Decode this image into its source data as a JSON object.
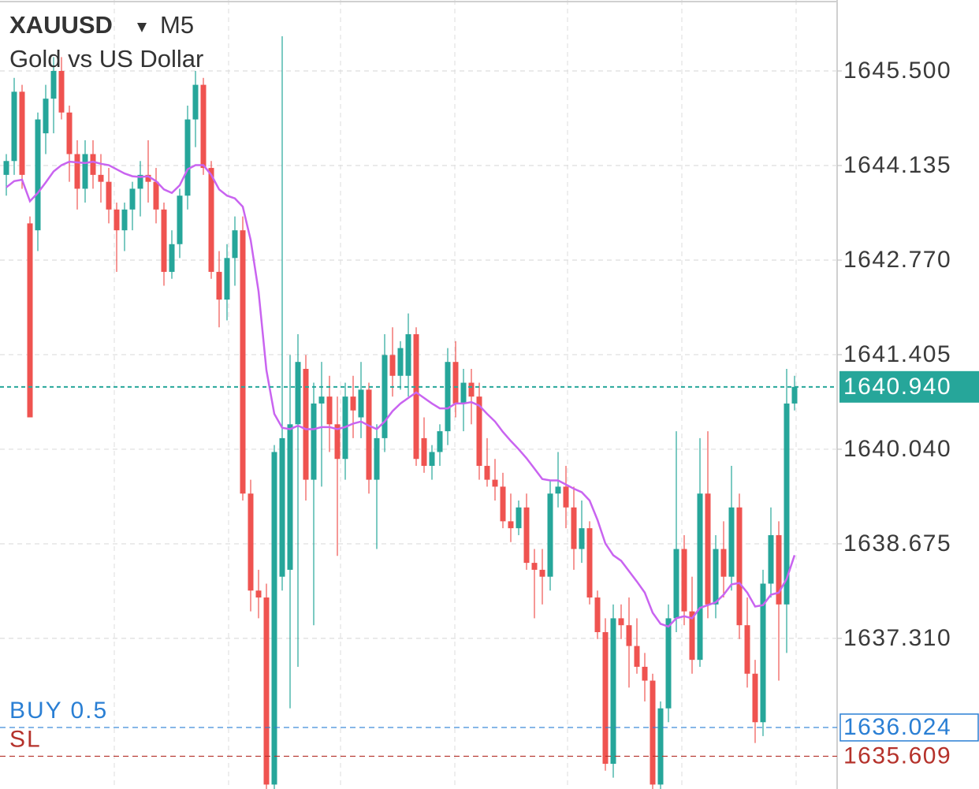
{
  "chart_data": {
    "type": "candlestick",
    "symbol": "XAUUSD",
    "timeframe": "M5",
    "description": "Gold vs US Dollar",
    "ylim": [
      1635.136,
      1646.524
    ],
    "yticks": [
      {
        "value": 1645.5,
        "label": "1645.500"
      },
      1644.135,
      {
        "value": 1642.77,
        "label": "1642.770"
      },
      1641.405,
      {
        "value": 1640.04,
        "label": "1640.040"
      },
      1638.675,
      {
        "value": 1637.31,
        "label": "1637.310"
      }
    ],
    "grid": true,
    "up_color": "#26a69a",
    "down_color": "#ef5350",
    "candles": [
      [
        1644.0,
        1644.3,
        1643.7,
        1644.2
      ],
      [
        1644.2,
        1645.4,
        1644.0,
        1645.2
      ],
      [
        1645.2,
        1645.3,
        1643.8,
        1644.0
      ],
      [
        1643.3,
        1643.4,
        1640.5,
        1640.5
      ],
      [
        1643.2,
        1644.9,
        1642.9,
        1644.8
      ],
      [
        1644.6,
        1645.3,
        1644.3,
        1645.1
      ],
      [
        1645.1,
        1645.7,
        1644.6,
        1645.5
      ],
      [
        1645.5,
        1645.7,
        1644.8,
        1644.9
      ],
      [
        1644.9,
        1645.0,
        1643.9,
        1644.3
      ],
      [
        1644.3,
        1644.5,
        1643.5,
        1643.8
      ],
      [
        1643.8,
        1644.5,
        1643.6,
        1644.3
      ],
      [
        1644.3,
        1644.5,
        1643.8,
        1644.0
      ],
      [
        1644.0,
        1644.3,
        1643.6,
        1643.9
      ],
      [
        1643.9,
        1644.1,
        1643.3,
        1643.5
      ],
      [
        1643.5,
        1643.6,
        1642.6,
        1643.2
      ],
      [
        1643.2,
        1643.6,
        1642.9,
        1643.5
      ],
      [
        1643.5,
        1643.9,
        1643.2,
        1643.8
      ],
      [
        1643.8,
        1644.2,
        1643.4,
        1644.0
      ],
      [
        1644.0,
        1644.5,
        1643.6,
        1643.9
      ],
      [
        1643.9,
        1644.1,
        1643.3,
        1643.5
      ],
      [
        1643.5,
        1643.6,
        1642.4,
        1642.6
      ],
      [
        1642.6,
        1643.2,
        1642.5,
        1643.0
      ],
      [
        1643.0,
        1643.8,
        1642.8,
        1643.7
      ],
      [
        1643.7,
        1645.0,
        1643.5,
        1644.8
      ],
      [
        1644.8,
        1645.5,
        1644.4,
        1645.3
      ],
      [
        1645.3,
        1645.4,
        1644.0,
        1644.1
      ],
      [
        1644.1,
        1644.2,
        1642.5,
        1642.6
      ],
      [
        1642.6,
        1642.9,
        1641.8,
        1642.2
      ],
      [
        1642.2,
        1643.0,
        1641.9,
        1642.8
      ],
      [
        1642.8,
        1643.4,
        1642.4,
        1643.2
      ],
      [
        1643.2,
        1643.4,
        1639.3,
        1639.4
      ],
      [
        1639.4,
        1639.6,
        1637.7,
        1638.0
      ],
      [
        1638.0,
        1638.3,
        1637.6,
        1637.9
      ],
      [
        1637.9,
        1638.1,
        1635.1,
        1635.2
      ],
      [
        1635.2,
        1640.1,
        1635.1,
        1640.0
      ],
      [
        1638.2,
        1646.0,
        1638.0,
        1640.2
      ],
      [
        1638.3,
        1641.4,
        1636.3,
        1640.4
      ],
      [
        1640.4,
        1641.7,
        1636.9,
        1641.3
      ],
      [
        1641.2,
        1641.4,
        1639.3,
        1639.6
      ],
      [
        1639.6,
        1641.0,
        1637.5,
        1640.7
      ],
      [
        1640.7,
        1641.3,
        1639.5,
        1640.8
      ],
      [
        1640.8,
        1641.1,
        1640.0,
        1640.4
      ],
      [
        1640.4,
        1640.8,
        1638.5,
        1639.9
      ],
      [
        1639.9,
        1641.0,
        1639.6,
        1640.8
      ],
      [
        1640.8,
        1641.1,
        1640.2,
        1640.6
      ],
      [
        1640.5,
        1641.3,
        1640.2,
        1640.9
      ],
      [
        1640.9,
        1641.0,
        1639.4,
        1639.6
      ],
      [
        1639.6,
        1640.4,
        1638.6,
        1640.2
      ],
      [
        1640.2,
        1641.7,
        1640.0,
        1641.4
      ],
      [
        1641.4,
        1641.8,
        1640.8,
        1641.1
      ],
      [
        1641.1,
        1641.6,
        1640.9,
        1641.5
      ],
      [
        1641.1,
        1642.0,
        1640.8,
        1641.7
      ],
      [
        1641.7,
        1641.8,
        1639.8,
        1639.9
      ],
      [
        1640.2,
        1640.5,
        1639.7,
        1639.8
      ],
      [
        1639.8,
        1640.1,
        1639.6,
        1640.0
      ],
      [
        1640.0,
        1640.4,
        1639.8,
        1640.3
      ],
      [
        1640.3,
        1641.5,
        1640.1,
        1641.3
      ],
      [
        1641.3,
        1641.6,
        1640.5,
        1640.7
      ],
      [
        1640.7,
        1641.2,
        1640.3,
        1641.0
      ],
      [
        1641.0,
        1641.2,
        1640.4,
        1640.8
      ],
      [
        1640.8,
        1641.0,
        1639.6,
        1639.8
      ],
      [
        1639.8,
        1640.2,
        1639.5,
        1639.6
      ],
      [
        1639.6,
        1639.9,
        1639.3,
        1639.5
      ],
      [
        1639.5,
        1639.7,
        1638.9,
        1639.0
      ],
      [
        1639.0,
        1639.4,
        1638.7,
        1638.9
      ],
      [
        1638.9,
        1639.3,
        1638.8,
        1639.2
      ],
      [
        1639.2,
        1639.4,
        1638.3,
        1638.4
      ],
      [
        1638.4,
        1638.6,
        1637.6,
        1638.3
      ],
      [
        1638.3,
        1638.6,
        1637.8,
        1638.2
      ],
      [
        1638.2,
        1639.6,
        1638.0,
        1639.4
      ],
      [
        1639.4,
        1640.0,
        1639.2,
        1639.5
      ],
      [
        1639.5,
        1639.8,
        1638.9,
        1639.2
      ],
      [
        1639.2,
        1639.5,
        1638.3,
        1638.6
      ],
      [
        1638.6,
        1639.3,
        1638.4,
        1638.9
      ],
      [
        1638.9,
        1639.0,
        1637.8,
        1637.9
      ],
      [
        1637.9,
        1638.0,
        1637.3,
        1637.4
      ],
      [
        1637.4,
        1637.6,
        1635.4,
        1635.5
      ],
      [
        1635.5,
        1637.8,
        1635.3,
        1637.6
      ],
      [
        1637.6,
        1637.8,
        1637.3,
        1637.5
      ],
      [
        1637.5,
        1637.9,
        1636.6,
        1637.2
      ],
      [
        1637.2,
        1637.6,
        1636.8,
        1636.9
      ],
      [
        1636.9,
        1637.1,
        1636.4,
        1636.7
      ],
      [
        1636.7,
        1636.8,
        1635.1,
        1635.2
      ],
      [
        1635.2,
        1636.4,
        1635.1,
        1636.3
      ],
      [
        1636.3,
        1637.8,
        1636.1,
        1637.6
      ],
      [
        1637.6,
        1640.3,
        1637.4,
        1638.6
      ],
      [
        1638.6,
        1638.8,
        1637.5,
        1637.7
      ],
      [
        1637.7,
        1638.2,
        1636.8,
        1637.0
      ],
      [
        1637.0,
        1640.2,
        1636.9,
        1639.4
      ],
      [
        1639.4,
        1640.3,
        1637.6,
        1637.8
      ],
      [
        1637.8,
        1638.8,
        1637.6,
        1638.6
      ],
      [
        1638.6,
        1639.0,
        1637.9,
        1638.2
      ],
      [
        1638.2,
        1639.8,
        1638.0,
        1639.2
      ],
      [
        1639.2,
        1639.4,
        1637.3,
        1637.5
      ],
      [
        1637.5,
        1637.9,
        1636.6,
        1636.8
      ],
      [
        1636.8,
        1637.0,
        1635.8,
        1636.1
      ],
      [
        1636.1,
        1638.3,
        1635.9,
        1638.1
      ],
      [
        1638.1,
        1639.2,
        1637.9,
        1638.8
      ],
      [
        1638.8,
        1639.0,
        1636.7,
        1637.8
      ],
      [
        1637.8,
        1641.2,
        1637.1,
        1640.7
      ],
      [
        1640.7,
        1641.1,
        1640.6,
        1640.94
      ]
    ],
    "ma_color": "#c964f0",
    "ma": [
      1643.82,
      1643.91,
      1643.93,
      1643.62,
      1643.74,
      1643.89,
      1644.05,
      1644.14,
      1644.19,
      1644.18,
      1644.17,
      1644.19,
      1644.16,
      1644.14,
      1644.08,
      1644.02,
      1643.98,
      1643.97,
      1643.98,
      1643.91,
      1643.79,
      1643.74,
      1643.85,
      1644.08,
      1644.14,
      1644.14,
      1644.0,
      1643.79,
      1643.7,
      1643.66,
      1643.54,
      1643.06,
      1642.32,
      1641.18,
      1640.55,
      1640.35,
      1640.33,
      1640.38,
      1640.33,
      1640.33,
      1640.36,
      1640.36,
      1640.33,
      1640.36,
      1640.41,
      1640.44,
      1640.38,
      1640.33,
      1640.44,
      1640.59,
      1640.7,
      1640.78,
      1640.86,
      1640.78,
      1640.7,
      1640.63,
      1640.63,
      1640.7,
      1640.7,
      1640.72,
      1640.67,
      1640.55,
      1640.44,
      1640.29,
      1640.16,
      1640.04,
      1639.91,
      1639.76,
      1639.61,
      1639.59,
      1639.59,
      1639.53,
      1639.47,
      1639.42,
      1639.3,
      1639.02,
      1638.68,
      1638.51,
      1638.43,
      1638.28,
      1638.13,
      1637.97,
      1637.68,
      1637.52,
      1637.48,
      1637.6,
      1637.63,
      1637.6,
      1637.75,
      1637.79,
      1637.83,
      1637.94,
      1638.09,
      1638.11,
      1637.97,
      1637.77,
      1637.79,
      1637.94,
      1637.97,
      1638.17,
      1638.51
    ],
    "current_price": {
      "value": 1640.94,
      "label": "1640.940",
      "color": "#26a69a"
    },
    "orders": [
      {
        "name": "BUY 0.5",
        "value": 1636.024,
        "label": "1636.024",
        "color": "#2a7fd4"
      },
      {
        "name": "SL",
        "value": 1635.609,
        "label": "1635.609",
        "color": "#b5322b"
      }
    ]
  }
}
